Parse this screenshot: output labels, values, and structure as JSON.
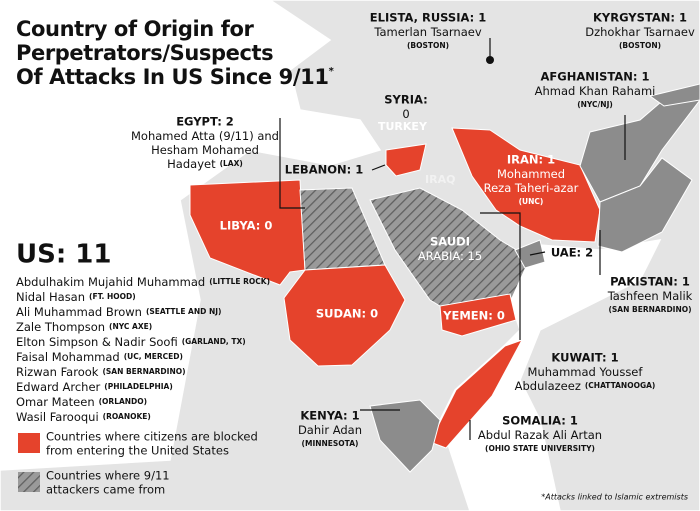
{
  "title": [
    "Country of Origin for",
    "Perpetrators/Suspects",
    "Of Attacks In US Since 9/11"
  ],
  "title_mark": "*",
  "places": [
    "TURKEY",
    "IRAQ"
  ],
  "labels": [
    {
      "title": "ELISTA, RUSSIA: 1",
      "lines": [
        {
          "text": "Tamerlan Tsarnaev"
        },
        {
          "note": "(BOSTON)"
        }
      ]
    },
    {
      "title": "KYRGYSTAN: 1",
      "lines": [
        {
          "text": "Dzhokhar Tsarnaev"
        },
        {
          "note": "(BOSTON)"
        }
      ]
    },
    {
      "title": "AFGHANISTAN: 1",
      "lines": [
        {
          "text": "Ahmad Khan Rahami"
        },
        {
          "note": "(NYC/NJ)"
        }
      ]
    },
    {
      "title": "SYRIA:",
      "lines": [
        {
          "text": "0"
        }
      ]
    },
    {
      "title": "EGYPT: 2",
      "lines": [
        {
          "text": "Mohamed Atta (9/11) and"
        },
        {
          "text": "Hesham Mohamed"
        },
        {
          "text": "Hadayet",
          "note": "(LAX)"
        }
      ]
    },
    {
      "title": "LEBANON: 1",
      "lines": []
    },
    {
      "title": "IRAN: 1",
      "lines": [
        {
          "text": "Mohammed"
        },
        {
          "text": "Reza Taheri-azar"
        },
        {
          "note": "(UNC)"
        }
      ]
    },
    {
      "title": "LIBYA: 0",
      "lines": []
    },
    {
      "title": "SAUDI",
      "lines": [
        {
          "text": "ARABIA: 15"
        }
      ]
    },
    {
      "title": "UAE: 2",
      "lines": []
    },
    {
      "title": "PAKISTAN: 1",
      "lines": [
        {
          "text": "Tashfeen Malik"
        },
        {
          "note": "(SAN BERNARDINO)"
        }
      ]
    },
    {
      "title": "SUDAN: 0",
      "lines": []
    },
    {
      "title": "YEMEN: 0",
      "lines": []
    },
    {
      "title": "KUWAIT: 1",
      "lines": [
        {
          "text": "Muhammad Youssef"
        },
        {
          "text": "Abdulazeez",
          "note": "(CHATTANOOGA)"
        }
      ]
    },
    {
      "title": "KENYA: 1",
      "lines": [
        {
          "text": "Dahir Adan"
        },
        {
          "note": "(MINNESOTA)"
        }
      ]
    },
    {
      "title": "SOMALIA: 1",
      "lines": [
        {
          "text": "Abdul Razak Ali Artan"
        },
        {
          "note": "(OHIO STATE UNIVERSITY)"
        }
      ]
    }
  ],
  "us": {
    "title": "US: 11",
    "people": [
      {
        "text": "Abdulhakim Mujahid Muhammad",
        "note": "(LITTLE ROCK)"
      },
      {
        "text": "Nidal Hasan",
        "note": "(FT. HOOD)"
      },
      {
        "text": "Ali Muhammad Brown",
        "note": "(SEATTLE AND NJ)"
      },
      {
        "text": "Zale Thompson",
        "note": "(NYC AXE)"
      },
      {
        "text": "Elton Simpson &  Nadir Soofi",
        "note": "(GARLAND, TX)"
      },
      {
        "text": "Faisal Mohammad",
        "note": "(UC, MERCED)"
      },
      {
        "text": "Rizwan Farook",
        "note": "(SAN BERNARDINO)"
      },
      {
        "text": "Edward Archer",
        "note": "(PHILADELPHIA)"
      },
      {
        "text": "Omar Mateen",
        "note": "(ORLANDO)"
      },
      {
        "text": "Wasil Farooqui",
        "note": "(ROANOKE)"
      }
    ]
  },
  "legend": [
    [
      "Countries where citizens are blocked",
      "from entering the United States"
    ],
    [
      "Countries where 9/11",
      "attackers came from"
    ]
  ],
  "footnote": "*Attacks linked to Islamic extremists"
}
